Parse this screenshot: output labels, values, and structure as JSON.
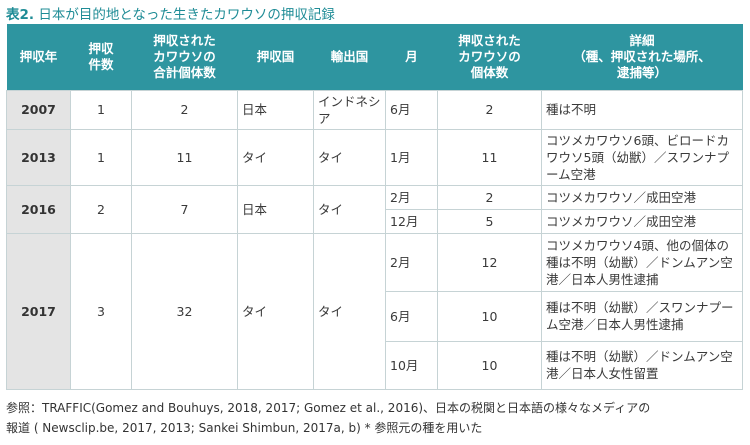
{
  "caption": {
    "number": "表2.",
    "text": "日本が目的地となった生きたカワウソの押収記録"
  },
  "headers": [
    "押収年",
    "押収\n件数",
    "押収された\nカワウソの\n合計個体数",
    "押収国",
    "輸出国",
    "月",
    "押収された\nカワウソの\n個体数",
    "詳細\n（種、押収された場所、\n逮捕等）"
  ],
  "records": [
    {
      "year": "2007",
      "cases": "1",
      "total": "2",
      "seizure_country": "日本",
      "export_country": "インドネシア",
      "rows": [
        {
          "month": "6月",
          "count": "2",
          "detail": "種は不明"
        }
      ]
    },
    {
      "year": "2013",
      "cases": "1",
      "total": "11",
      "seizure_country": "タイ",
      "export_country": "タイ",
      "rows": [
        {
          "month": "1月",
          "count": "11",
          "detail": "コツメカワウソ6頭、ビロードカワウソ5頭（幼獣）／スワンナプーム空港"
        }
      ]
    },
    {
      "year": "2016",
      "cases": "2",
      "total": "7",
      "seizure_country": "日本",
      "export_country": "タイ",
      "rows": [
        {
          "month": "2月",
          "count": "2",
          "detail": "コツメカワウソ／成田空港"
        },
        {
          "month": "12月",
          "count": "5",
          "detail": "コツメカワウソ／成田空港"
        }
      ]
    },
    {
      "year": "2017",
      "cases": "3",
      "total": "32",
      "seizure_country": "タイ",
      "export_country": "タイ",
      "rows": [
        {
          "month": "2月",
          "count": "12",
          "detail": "コツメカワウソ4頭、他の個体の種は不明（幼獣）／ドンムアン空港／日本人男性逮捕"
        },
        {
          "month": "6月",
          "count": "10",
          "detail": "種は不明（幼獣）／スワンナプーム空港／日本人男性逮捕"
        },
        {
          "month": "10月",
          "count": "10",
          "detail": "種は不明（幼獣）／ドンムアン空港／日本人女性留置"
        }
      ]
    }
  ],
  "footnote": {
    "line1": "参照：TRAFFIC(Gomez and Bouhuys, 2018, 2017; Gomez et al., 2016)、日本の税関と日本語の様々なメディアの",
    "line2": "報道 ( Newsclip.be, 2017, 2013; Sankei Shimbun, 2017a, b) * 参照元の種を用いた"
  }
}
